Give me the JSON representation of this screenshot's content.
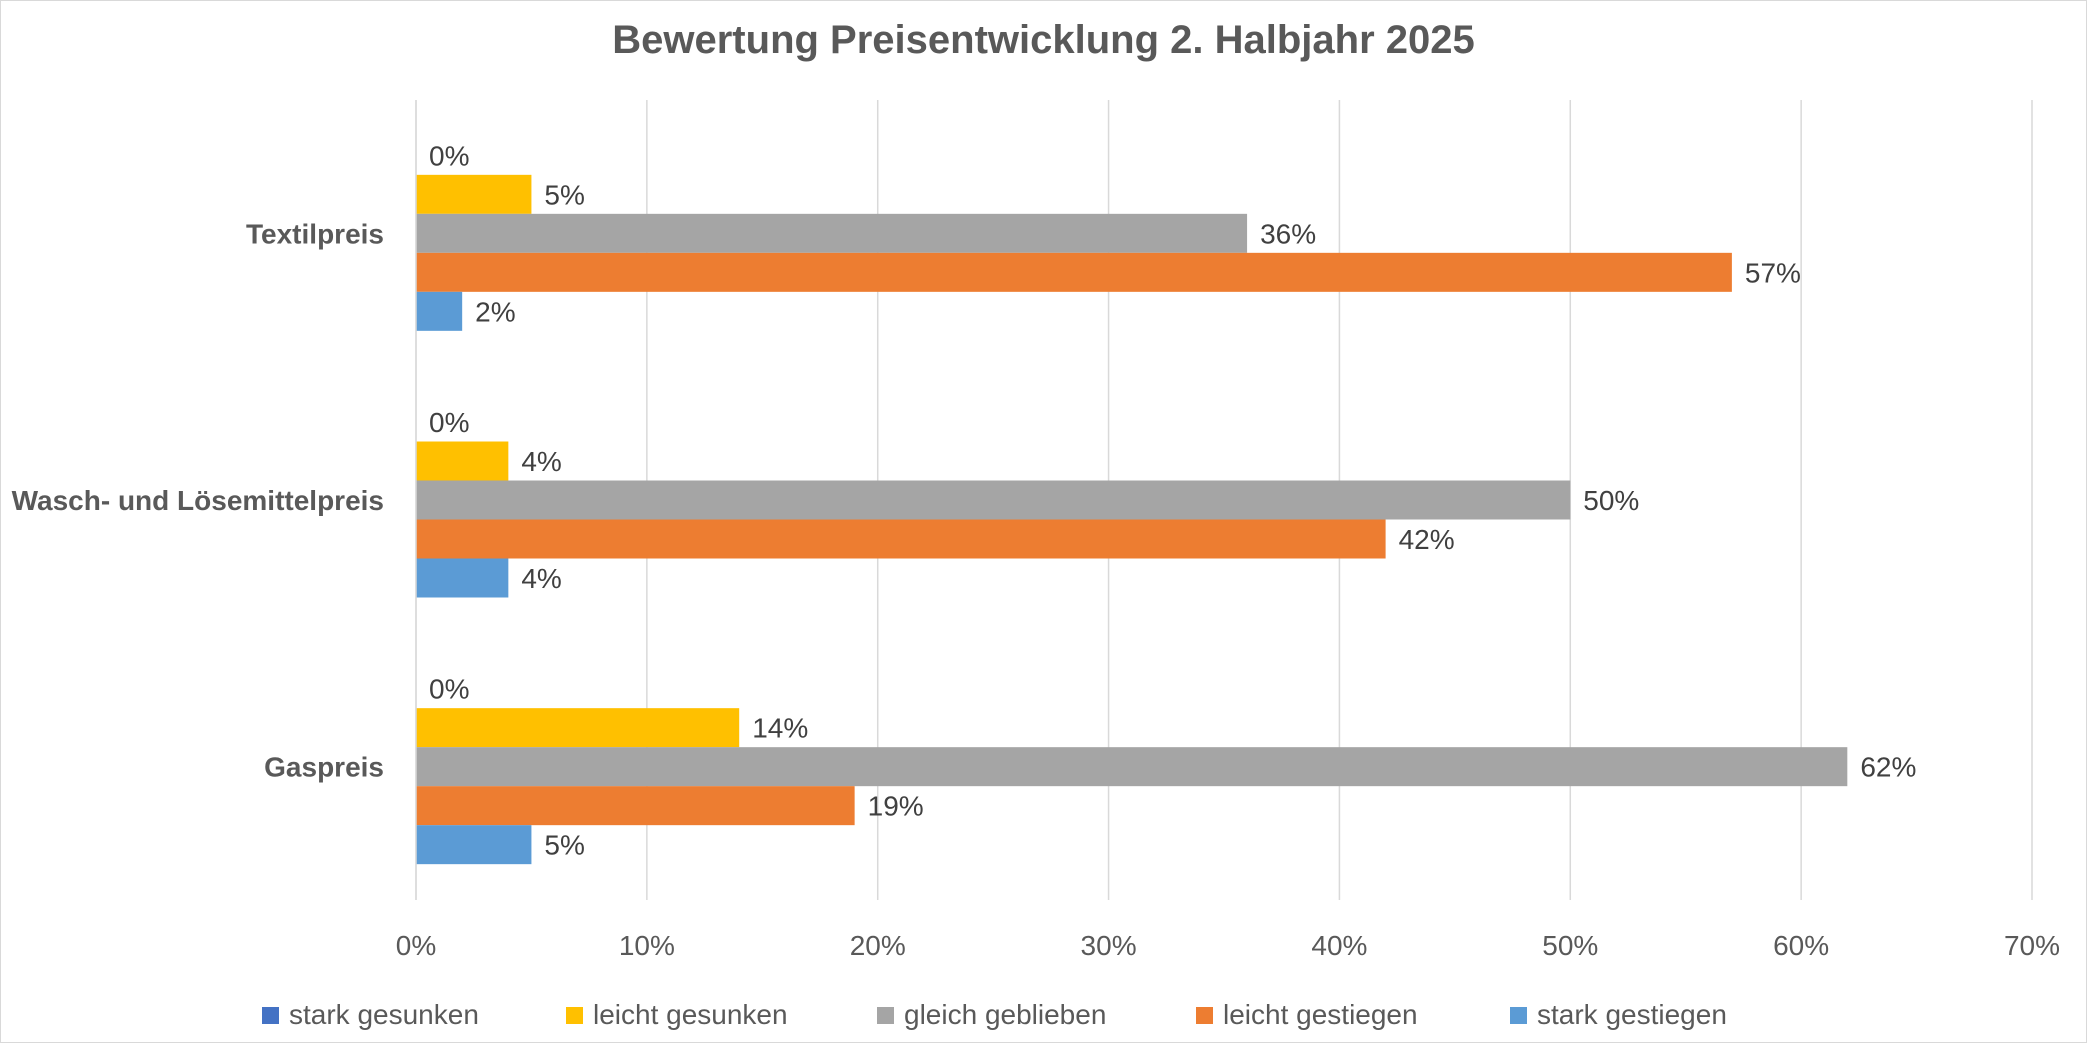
{
  "chart_data": {
    "type": "bar",
    "orientation": "horizontal",
    "title": "Bewertung Preisentwicklung 2. Halbjahr 2025",
    "categories": [
      "Textilpreis",
      "Wasch- und Lösemittelpreis",
      "Gaspreis"
    ],
    "series": [
      {
        "name": "stark gesunken",
        "color": "#4472C4",
        "values": [
          0,
          0,
          0
        ],
        "labels": [
          "0%",
          "0%",
          "0%"
        ]
      },
      {
        "name": "leicht gesunken",
        "color": "#FFC000",
        "values": [
          5,
          4,
          14
        ],
        "labels": [
          "5%",
          "4%",
          "14%"
        ]
      },
      {
        "name": "gleich geblieben",
        "color": "#A5A5A5",
        "values": [
          36,
          50,
          62
        ],
        "labels": [
          "36%",
          "50%",
          "62%"
        ]
      },
      {
        "name": "leicht gestiegen",
        "color": "#ED7D31",
        "values": [
          57,
          42,
          19
        ],
        "labels": [
          "57%",
          "42%",
          "19%"
        ]
      },
      {
        "name": "stark gestiegen",
        "color": "#5B9BD5",
        "values": [
          2,
          4,
          5
        ],
        "labels": [
          "2%",
          "4%",
          "5%"
        ]
      }
    ],
    "xlim": [
      0,
      70
    ],
    "xticks": [
      0,
      10,
      20,
      30,
      40,
      50,
      60,
      70
    ],
    "xtick_labels": [
      "0%",
      "10%",
      "20%",
      "30%",
      "40%",
      "50%",
      "60%",
      "70%"
    ],
    "xlabel": "",
    "ylabel": "",
    "grid": true,
    "legend_position": "bottom"
  }
}
